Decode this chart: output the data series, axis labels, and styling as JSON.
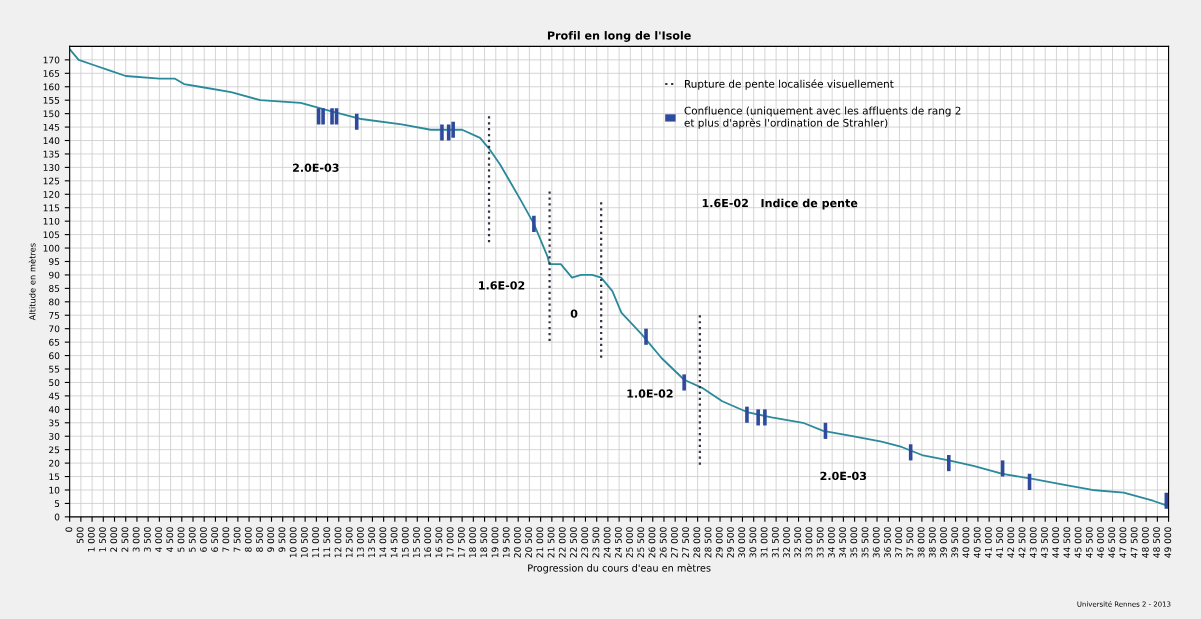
{
  "chart_data": {
    "type": "line",
    "title": "Profil en long de l'Isole",
    "xlabel": "Progression du cours d'eau en mètres",
    "ylabel": "Altitude en mètres",
    "xlim": [
      0,
      49000
    ],
    "ylim": [
      0,
      175
    ],
    "yticks": [
      0,
      5,
      10,
      15,
      20,
      25,
      30,
      35,
      40,
      45,
      50,
      55,
      60,
      65,
      70,
      75,
      80,
      85,
      90,
      95,
      100,
      105,
      110,
      115,
      120,
      125,
      130,
      135,
      140,
      145,
      150,
      155,
      160,
      165,
      170
    ],
    "xticks": [
      0,
      500,
      {
        "value": 1000,
        "label": "1 000"
      },
      {
        "value": 1500,
        "label": "1 500"
      },
      {
        "value": 2000,
        "label": "2 000"
      },
      {
        "value": 2500,
        "label": "2 500"
      },
      {
        "value": 3000,
        "label": "3 000"
      },
      {
        "value": 3500,
        "label": "3 500"
      },
      {
        "value": 4000,
        "label": "4 000"
      },
      {
        "value": 4500,
        "label": "4 500"
      },
      {
        "value": 5000,
        "label": "5 000"
      },
      {
        "value": 5500,
        "label": "5 500"
      },
      {
        "value": 6000,
        "label": "6 000"
      },
      {
        "value": 6500,
        "label": "6 500"
      },
      {
        "value": 7000,
        "label": "7 000"
      },
      {
        "value": 7500,
        "label": "7 500"
      },
      {
        "value": 8000,
        "label": "8 000"
      },
      {
        "value": 8500,
        "label": "8 500"
      },
      {
        "value": 9000,
        "label": "9 000"
      },
      {
        "value": 9500,
        "label": "9 500"
      },
      {
        "value": 10000,
        "label": "10 000"
      },
      {
        "value": 10500,
        "label": "10 500"
      },
      {
        "value": 11000,
        "label": "11 000"
      },
      {
        "value": 11500,
        "label": "11 500"
      },
      {
        "value": 12000,
        "label": "12 000"
      },
      {
        "value": 12500,
        "label": "12 500"
      },
      {
        "value": 13000,
        "label": "13 000"
      },
      {
        "value": 13500,
        "label": "13 500"
      },
      {
        "value": 14000,
        "label": "14 000"
      },
      {
        "value": 14500,
        "label": "14 500"
      },
      {
        "value": 15000,
        "label": "15 000"
      },
      {
        "value": 15500,
        "label": "15 500"
      },
      {
        "value": 16000,
        "label": "16 000"
      },
      {
        "value": 16500,
        "label": "16 500"
      },
      {
        "value": 17000,
        "label": "17 000"
      },
      {
        "value": 17500,
        "label": "17 500"
      },
      {
        "value": 18000,
        "label": "18 000"
      },
      {
        "value": 18500,
        "label": "18 500"
      },
      {
        "value": 19000,
        "label": "19 000"
      },
      {
        "value": 19500,
        "label": "19 500"
      },
      {
        "value": 20000,
        "label": "20 000"
      },
      {
        "value": 20500,
        "label": "20 500"
      },
      {
        "value": 21000,
        "label": "21 000"
      },
      {
        "value": 21500,
        "label": "21 500"
      },
      {
        "value": 22000,
        "label": "22 000"
      },
      {
        "value": 22500,
        "label": "22 500"
      },
      {
        "value": 23000,
        "label": "23 000"
      },
      {
        "value": 23500,
        "label": "23 500"
      },
      {
        "value": 24000,
        "label": "24 000"
      },
      {
        "value": 24500,
        "label": "24 500"
      },
      {
        "value": 25000,
        "label": "25 000"
      },
      {
        "value": 25500,
        "label": "25 500"
      },
      {
        "value": 26000,
        "label": "26 000"
      },
      {
        "value": 26500,
        "label": "26 500"
      },
      {
        "value": 27000,
        "label": "27 000"
      },
      {
        "value": 27500,
        "label": "27 500"
      },
      {
        "value": 28000,
        "label": "28 000"
      },
      {
        "value": 28500,
        "label": "28 500"
      },
      {
        "value": 29000,
        "label": "29 000"
      },
      {
        "value": 29500,
        "label": "29 500"
      },
      {
        "value": 30000,
        "label": "30 000"
      },
      {
        "value": 30500,
        "label": "30 500"
      },
      {
        "value": 31000,
        "label": "31 000"
      },
      {
        "value": 31500,
        "label": "31 500"
      },
      {
        "value": 32000,
        "label": "32 000"
      },
      {
        "value": 32500,
        "label": "32 500"
      },
      {
        "value": 33000,
        "label": "33 000"
      },
      {
        "value": 33500,
        "label": "33 500"
      },
      {
        "value": 34000,
        "label": "34 000"
      },
      {
        "value": 34500,
        "label": "34 500"
      },
      {
        "value": 35000,
        "label": "35 000"
      },
      {
        "value": 35500,
        "label": "35 500"
      },
      {
        "value": 36000,
        "label": "36 000"
      },
      {
        "value": 36500,
        "label": "36 500"
      },
      {
        "value": 37000,
        "label": "37 000"
      },
      {
        "value": 37500,
        "label": "37 500"
      },
      {
        "value": 38000,
        "label": "38 000"
      },
      {
        "value": 38500,
        "label": "38 500"
      },
      {
        "value": 39000,
        "label": "39 000"
      },
      {
        "value": 39500,
        "label": "39 500"
      },
      {
        "value": 40000,
        "label": "40 000"
      },
      {
        "value": 40500,
        "label": "40 500"
      },
      {
        "value": 41000,
        "label": "41 000"
      },
      {
        "value": 41500,
        "label": "41 500"
      },
      {
        "value": 42000,
        "label": "42 000"
      },
      {
        "value": 42500,
        "label": "42 500"
      },
      {
        "value": 43000,
        "label": "43 000"
      },
      {
        "value": 43500,
        "label": "43 500"
      },
      {
        "value": 44000,
        "label": "44 000"
      },
      {
        "value": 44500,
        "label": "44 500"
      },
      {
        "value": 45000,
        "label": "45 000"
      },
      {
        "value": 45500,
        "label": "45 500"
      },
      {
        "value": 46000,
        "label": "46 000"
      },
      {
        "value": 46500,
        "label": "46 500"
      },
      {
        "value": 47000,
        "label": "47 000"
      },
      {
        "value": 47500,
        "label": "47 500"
      },
      {
        "value": 48000,
        "label": "48 000"
      },
      {
        "value": 48500,
        "label": "48 500"
      },
      {
        "value": 49000,
        "label": "49 000"
      }
    ],
    "grid": true,
    "legend": "top right",
    "series": [
      {
        "color": "#2a8a9a",
        "line_style": "solid",
        "x": [
          0,
          400,
          1100,
          1800,
          2500,
          4000,
          4700,
          5100,
          5800,
          7200,
          8500,
          10300,
          11600,
          13000,
          14800,
          16100,
          17500,
          18300,
          18700,
          19200,
          20100,
          20700,
          21300,
          21400,
          21900,
          22400,
          22800,
          23300,
          23700,
          24200,
          24600,
          25500,
          26400,
          27400,
          28200,
          29100,
          30200,
          31300,
          32700,
          33600,
          34900,
          36200,
          37100,
          38000,
          39200,
          40300,
          41600,
          43000,
          44300,
          45600,
          47000,
          48300,
          49000
        ],
        "values": [
          174,
          170,
          168,
          166,
          164,
          163,
          163,
          161,
          160,
          158,
          155,
          154,
          151,
          148,
          146,
          144,
          144,
          141,
          137,
          131,
          118,
          109,
          97,
          94,
          94,
          89,
          90,
          90,
          89,
          84,
          76,
          68,
          59,
          51,
          48,
          43,
          39,
          37,
          35,
          32,
          30,
          28,
          26,
          23,
          21,
          19,
          16,
          14,
          12,
          10,
          9,
          6,
          4
        ]
      },
      {
        "type": "line",
        "name": "Rupture de pente localisée visuellement",
        "color": "#333344",
        "line_style": "dotted",
        "x": [
          18700,
          18700
        ],
        "values": [
          149,
          102
        ]
      },
      {
        "type": "line",
        "color": "#333344",
        "line_style": "dotted",
        "x": [
          21400,
          21400
        ],
        "values": [
          121,
          65
        ]
      },
      {
        "type": "line",
        "color": "#333344",
        "line_style": "dotted",
        "x": [
          23700,
          23700
        ],
        "values": [
          117,
          59
        ]
      },
      {
        "type": "line",
        "color": "#333344",
        "line_style": "dotted",
        "x": [
          28100,
          28100
        ],
        "values": [
          75,
          19
        ]
      },
      {
        "type": "bar",
        "name": "Confluence (uniquement avec les affluents de rang 2\net plus d'après l'ordination de Strahler)",
        "color": "#2e4a9e",
        "x": [
          11100,
          11300,
          11700,
          11900,
          12800,
          16600,
          16900,
          17100,
          20700,
          25700,
          27400,
          30200,
          30700,
          31000,
          33700,
          37500,
          39200,
          41600,
          42800,
          48900
        ],
        "base": [
          146,
          146,
          146,
          146,
          144,
          140,
          140,
          141,
          106,
          64,
          47,
          35,
          34,
          34,
          29,
          21,
          17,
          15,
          10,
          3
        ],
        "values": [
          6,
          6,
          6,
          6,
          6,
          6,
          6,
          6,
          6,
          6,
          6,
          6,
          6,
          6,
          6,
          6,
          6,
          6,
          6,
          6
        ]
      }
    ],
    "annotations": [
      "1.6E-02   Indice de pente",
      "Université Rennes 2 - 2013",
      "2.0E-03",
      "1.6E-02",
      "0",
      "1.0E-02",
      "2.0E-03"
    ]
  }
}
